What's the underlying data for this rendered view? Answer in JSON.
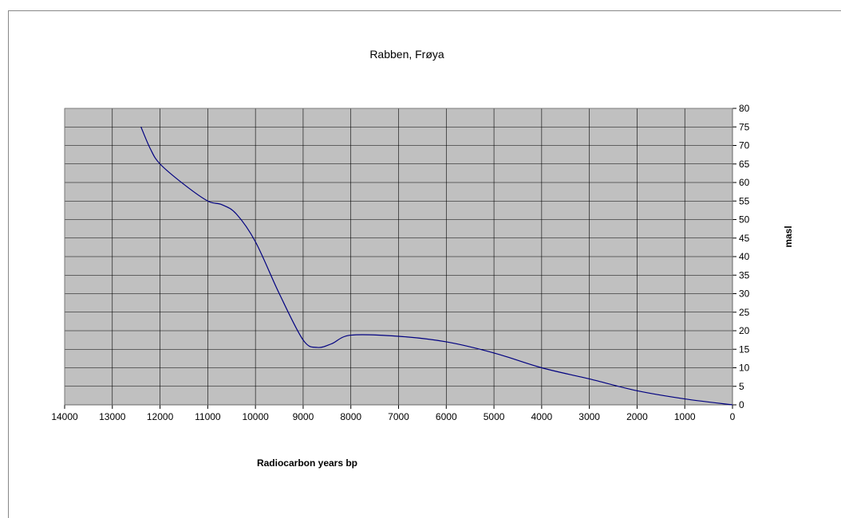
{
  "chart_data": {
    "type": "line",
    "title": "Rabben, Frøya",
    "xlabel": "Radiocarbon years bp",
    "ylabel": "masl",
    "x_reversed": true,
    "xlim": [
      0,
      14000
    ],
    "ylim": [
      0,
      80
    ],
    "x_ticks": [
      14000,
      13000,
      12000,
      11000,
      10000,
      9000,
      8000,
      7000,
      6000,
      5000,
      4000,
      3000,
      2000,
      1000,
      0
    ],
    "y_ticks": [
      0,
      5,
      10,
      15,
      20,
      25,
      30,
      35,
      40,
      45,
      50,
      55,
      60,
      65,
      70,
      75,
      80
    ],
    "y_axis_side": "right",
    "grid": true,
    "plot_background": "#c0c0c0",
    "line_color": "#000080",
    "series": [
      {
        "x": [
          12400,
          12200,
          12000,
          11500,
          11000,
          10700,
          10400,
          10000,
          9500,
          9000,
          8700,
          8400,
          8000,
          7000,
          6000,
          5000,
          4000,
          3000,
          2000,
          1000,
          0
        ],
        "y": [
          75,
          69,
          65,
          59.5,
          55,
          54,
          51.5,
          44,
          30,
          17.5,
          15.5,
          16.5,
          18.8,
          18.5,
          17,
          14,
          10,
          7,
          3.8,
          1.6,
          0
        ]
      }
    ]
  }
}
